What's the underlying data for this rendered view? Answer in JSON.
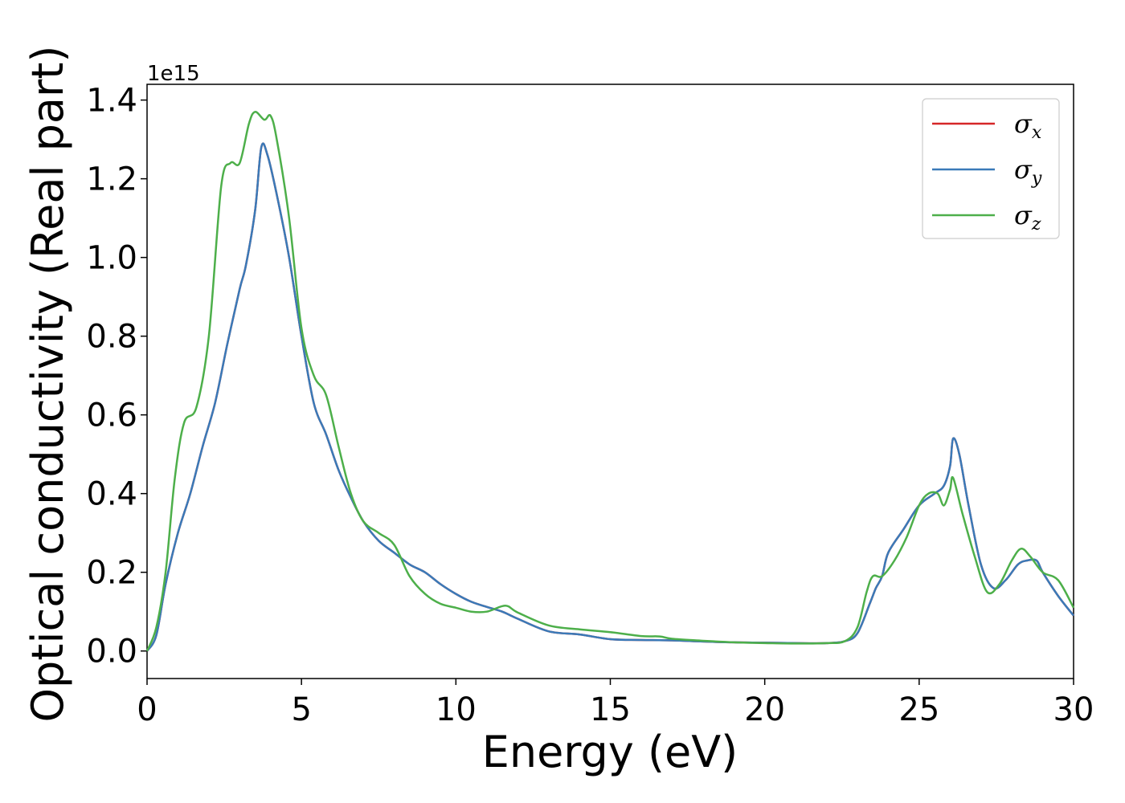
{
  "chart_data": {
    "type": "line",
    "xlabel": "Energy (eV)",
    "ylabel": "Optical conductivity (Real part)",
    "y_offset_label": "1e15",
    "y_scale_multiplier": 1000000000000000.0,
    "xlim": [
      0,
      30
    ],
    "ylim": [
      -0.07,
      1.44
    ],
    "x_ticks": [
      0,
      5,
      10,
      15,
      20,
      25,
      30
    ],
    "x_tick_labels": [
      "0",
      "5",
      "10",
      "15",
      "20",
      "25",
      "30"
    ],
    "y_ticks": [
      0.0,
      0.2,
      0.4,
      0.6,
      0.8,
      1.0,
      1.2,
      1.4
    ],
    "y_tick_labels": [
      "0.0",
      "0.2",
      "0.4",
      "0.6",
      "0.8",
      "1.0",
      "1.2",
      "1.4"
    ],
    "grid": false,
    "legend_position": "top-right",
    "series": [
      {
        "name": "σx",
        "symbol": "σ",
        "subscript": "x",
        "color": "#d62728",
        "x": [
          0,
          0.3,
          0.6,
          1.0,
          1.4,
          1.8,
          2.2,
          2.6,
          3.0,
          3.2,
          3.5,
          3.7,
          3.9,
          4.2,
          4.6,
          5.0,
          5.4,
          5.8,
          6.2,
          6.6,
          7.0,
          7.5,
          8.0,
          8.5,
          9.0,
          9.5,
          10.0,
          10.5,
          11.0,
          11.5,
          12.0,
          13.0,
          14.0,
          15.0,
          16.0,
          17.0,
          18.0,
          19.0,
          20.0,
          21.0,
          22.0,
          22.6,
          23.0,
          23.4,
          23.6,
          23.8,
          24.0,
          24.5,
          25.0,
          25.5,
          25.8,
          26.0,
          26.1,
          26.3,
          26.6,
          27.0,
          27.4,
          27.8,
          28.2,
          28.5,
          28.8,
          29.0,
          29.5,
          30.0
        ],
        "y": [
          0.0,
          0.04,
          0.17,
          0.3,
          0.4,
          0.52,
          0.63,
          0.78,
          0.92,
          0.98,
          1.12,
          1.28,
          1.26,
          1.16,
          1.0,
          0.8,
          0.63,
          0.55,
          0.46,
          0.39,
          0.33,
          0.28,
          0.25,
          0.22,
          0.2,
          0.17,
          0.145,
          0.125,
          0.112,
          0.1,
          0.082,
          0.05,
          0.042,
          0.03,
          0.028,
          0.027,
          0.024,
          0.022,
          0.021,
          0.02,
          0.02,
          0.025,
          0.045,
          0.12,
          0.16,
          0.19,
          0.25,
          0.31,
          0.37,
          0.4,
          0.42,
          0.47,
          0.54,
          0.5,
          0.37,
          0.22,
          0.16,
          0.18,
          0.22,
          0.23,
          0.23,
          0.2,
          0.14,
          0.09
        ]
      },
      {
        "name": "σy",
        "symbol": "σ",
        "subscript": "y",
        "color": "#3a7ab8",
        "x": [
          0,
          0.3,
          0.6,
          1.0,
          1.4,
          1.8,
          2.2,
          2.6,
          3.0,
          3.2,
          3.5,
          3.7,
          3.9,
          4.2,
          4.6,
          5.0,
          5.4,
          5.8,
          6.2,
          6.6,
          7.0,
          7.5,
          8.0,
          8.5,
          9.0,
          9.5,
          10.0,
          10.5,
          11.0,
          11.5,
          12.0,
          13.0,
          14.0,
          15.0,
          16.0,
          17.0,
          18.0,
          19.0,
          20.0,
          21.0,
          22.0,
          22.6,
          23.0,
          23.4,
          23.6,
          23.8,
          24.0,
          24.5,
          25.0,
          25.5,
          25.8,
          26.0,
          26.1,
          26.3,
          26.6,
          27.0,
          27.4,
          27.8,
          28.2,
          28.5,
          28.8,
          29.0,
          29.5,
          30.0
        ],
        "y": [
          0.0,
          0.04,
          0.17,
          0.3,
          0.4,
          0.52,
          0.63,
          0.78,
          0.92,
          0.98,
          1.12,
          1.28,
          1.26,
          1.16,
          1.0,
          0.8,
          0.63,
          0.55,
          0.46,
          0.39,
          0.33,
          0.28,
          0.25,
          0.22,
          0.2,
          0.17,
          0.145,
          0.125,
          0.112,
          0.1,
          0.082,
          0.05,
          0.042,
          0.03,
          0.028,
          0.027,
          0.024,
          0.022,
          0.021,
          0.02,
          0.02,
          0.025,
          0.045,
          0.12,
          0.16,
          0.19,
          0.25,
          0.31,
          0.37,
          0.4,
          0.42,
          0.47,
          0.54,
          0.5,
          0.37,
          0.22,
          0.16,
          0.18,
          0.22,
          0.23,
          0.23,
          0.2,
          0.14,
          0.09
        ]
      },
      {
        "name": "σz",
        "symbol": "σ",
        "subscript": "z",
        "color": "#4daf4a",
        "x": [
          0,
          0.3,
          0.6,
          0.9,
          1.2,
          1.6,
          2.0,
          2.4,
          2.7,
          3.0,
          3.3,
          3.5,
          3.8,
          4.0,
          4.2,
          4.6,
          5.0,
          5.4,
          5.8,
          6.2,
          6.6,
          7.0,
          7.5,
          8.0,
          8.5,
          9.0,
          9.5,
          10.0,
          10.5,
          11.0,
          11.6,
          12.0,
          13.0,
          14.0,
          15.0,
          16.0,
          16.6,
          17.0,
          18.0,
          19.0,
          20.0,
          21.0,
          22.0,
          22.6,
          23.0,
          23.3,
          23.5,
          23.8,
          24.2,
          24.6,
          25.0,
          25.3,
          25.6,
          25.8,
          26.0,
          26.1,
          26.4,
          26.8,
          27.2,
          27.6,
          28.0,
          28.3,
          28.6,
          29.0,
          29.5,
          30.0
        ],
        "y": [
          0.0,
          0.06,
          0.2,
          0.44,
          0.58,
          0.62,
          0.8,
          1.18,
          1.24,
          1.24,
          1.34,
          1.37,
          1.35,
          1.36,
          1.3,
          1.1,
          0.82,
          0.7,
          0.65,
          0.52,
          0.4,
          0.33,
          0.3,
          0.27,
          0.19,
          0.145,
          0.12,
          0.11,
          0.1,
          0.1,
          0.115,
          0.098,
          0.065,
          0.055,
          0.048,
          0.038,
          0.037,
          0.031,
          0.026,
          0.022,
          0.02,
          0.019,
          0.02,
          0.025,
          0.06,
          0.15,
          0.19,
          0.19,
          0.23,
          0.29,
          0.37,
          0.4,
          0.4,
          0.37,
          0.41,
          0.44,
          0.35,
          0.24,
          0.15,
          0.17,
          0.23,
          0.26,
          0.24,
          0.2,
          0.18,
          0.11
        ]
      }
    ]
  }
}
